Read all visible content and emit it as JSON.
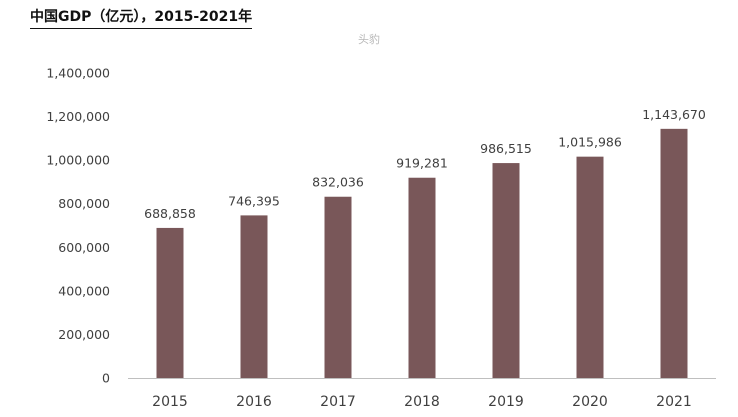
{
  "header": {
    "title": "中国GDP（亿元），2015-2021年",
    "watermark": "头豹"
  },
  "colors": {
    "bar": "#795759",
    "axis": "#bfbfbf",
    "text": "#404040"
  },
  "chart_data": {
    "type": "bar",
    "categories": [
      "2015",
      "2016",
      "2017",
      "2018",
      "2019",
      "2020",
      "2021"
    ],
    "values": [
      688858,
      746395,
      832036,
      919281,
      986515,
      1015986,
      1143670
    ],
    "value_labels": [
      "688,858",
      "746,395",
      "832,036",
      "919,281",
      "986,515",
      "1,015,986",
      "1,143,670"
    ],
    "ylim": [
      0,
      1400000
    ],
    "yticks": [
      0,
      200000,
      400000,
      600000,
      800000,
      1000000,
      1200000,
      1400000
    ],
    "ytick_labels": [
      "0",
      "200,000",
      "400,000",
      "600,000",
      "800,000",
      "1,000,000",
      "1,200,000",
      "1,400,000"
    ],
    "grid": false,
    "legend": "none"
  }
}
